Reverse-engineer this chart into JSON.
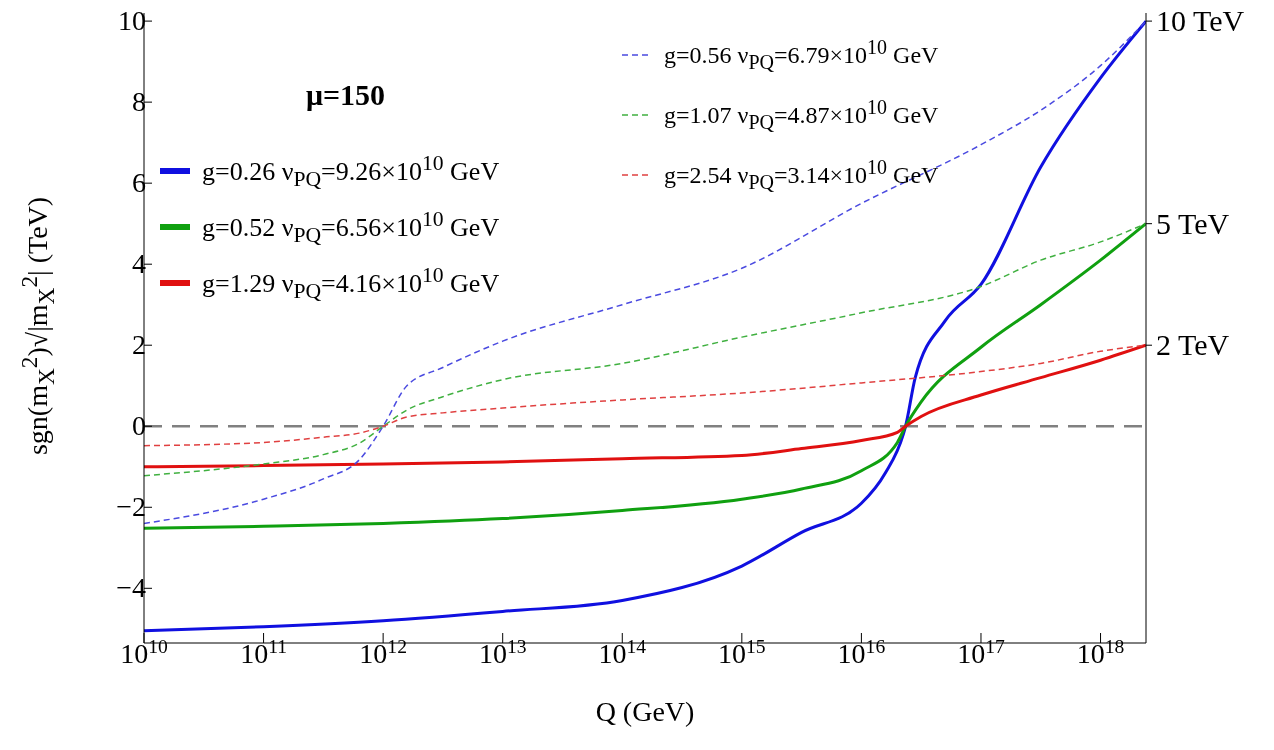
{
  "chart_data": {
    "type": "line",
    "xlabel": "Q (GeV)",
    "ylabel": "sgn(m$_{X}$$^{2}$)√|m$_{X}$$^{2}$| (TeV)",
    "log": "x",
    "xlim": [
      10000000000.0,
      2.4e+18
    ],
    "ylim": [
      -5.35,
      10.2
    ],
    "xticks": [
      {
        "value": 10000000000.0,
        "label": "10$^{10}$"
      },
      {
        "value": 100000000000.0,
        "label": "10$^{11}$"
      },
      {
        "value": 1000000000000.0,
        "label": "10$^{12}$"
      },
      {
        "value": 10000000000000.0,
        "label": "10$^{13}$"
      },
      {
        "value": 100000000000000.0,
        "label": "10$^{14}$"
      },
      {
        "value": 1000000000000000.0,
        "label": "10$^{15}$"
      },
      {
        "value": 1e+16,
        "label": "10$^{16}$"
      },
      {
        "value": 1e+17,
        "label": "10$^{17}$"
      },
      {
        "value": 1e+18,
        "label": "10$^{18}$"
      }
    ],
    "yticks": [
      {
        "value": -4,
        "label": "−4"
      },
      {
        "value": -2,
        "label": "−2"
      },
      0,
      2,
      4,
      6,
      8,
      10
    ],
    "grid": false,
    "legend": "top left",
    "marker": "none",
    "ref_lines": [
      {
        "axis": "y",
        "value": 0,
        "color": "#808080",
        "line_style": "dashed"
      }
    ],
    "annotations": [
      "μ=150"
    ],
    "y2lim": [
      -5.35,
      10.2
    ],
    "y2ticks": [
      {
        "value": 10,
        "label": "10 TeV"
      },
      {
        "value": 5,
        "label": "5 TeV"
      },
      {
        "value": 2,
        "label": "2 TeV"
      }
    ],
    "series": [
      {
        "name": "g=0.26  ν$_{PQ}$=9.26×10$^{10}$ GeV",
        "color": "#1010e0",
        "line_style": "solid",
        "x": [
          10000000000.0,
          100000000000.0,
          1000000000000.0,
          10000000000000.0,
          100000000000000.0,
          1000000000000000.0,
          3160000000000000.0,
          1e+16,
          1.58e+16,
          2.24e+16,
          2.34e+16,
          2.82e+16,
          5.01e+16,
          1e+17,
          3.16e+17,
          1e+18,
          2.4e+18
        ],
        "values": [
          -5.05,
          -4.95,
          -4.8,
          -4.57,
          -4.3,
          -3.45,
          -2.62,
          -1.9,
          -1.16,
          -0.2,
          0,
          1.2,
          2.6,
          3.5,
          6.4,
          8.6,
          10
        ]
      },
      {
        "name": "g=0.52  ν$_{PQ}$=6.56×10$^{10}$ GeV",
        "color": "#10a010",
        "line_style": "solid",
        "x": [
          10000000000.0,
          100000000000.0,
          1000000000000.0,
          10000000000000.0,
          100000000000000.0,
          1000000000000000.0,
          3160000000000000.0,
          1e+16,
          2e+16,
          2.34e+16,
          3.16e+16,
          1e+17,
          3.16e+17,
          1e+18,
          2.4e+18
        ],
        "values": [
          -2.52,
          -2.47,
          -2.4,
          -2.28,
          -2.08,
          -1.8,
          -1.55,
          -1.1,
          -0.4,
          0,
          0.6,
          1.95,
          3.0,
          4.1,
          5
        ]
      },
      {
        "name": "g=1.29  ν$_{PQ}$=4.16×10$^{10}$ GeV",
        "color": "#e01010",
        "line_style": "solid",
        "x": [
          10000000000.0,
          100000000000.0,
          1000000000000.0,
          10000000000000.0,
          100000000000000.0,
          1000000000000000.0,
          3160000000000000.0,
          1e+16,
          2e+16,
          2.34e+16,
          3.16e+16,
          1e+17,
          3.16e+17,
          1e+18,
          2.4e+18
        ],
        "values": [
          -1.0,
          -0.97,
          -0.93,
          -0.88,
          -0.8,
          -0.72,
          -0.55,
          -0.35,
          -0.15,
          0,
          0.24,
          0.77,
          1.2,
          1.63,
          2
        ]
      },
      {
        "name": "g=0.56  ν$_{PQ}$=6.79×10$^{10}$ GeV",
        "color": "#4a4ae0",
        "line_style": "dashed",
        "x": [
          10000000000.0,
          100000000000.0,
          316000000000.0,
          631000000000.0,
          1000000000000.0,
          1580000000000.0,
          3160000000000.0,
          10000000000000.0,
          100000000000000.0,
          1000000000000000.0,
          1e+16,
          1e+17,
          3.16e+17,
          1e+18,
          2.4e+18
        ],
        "values": [
          -2.4,
          -1.8,
          -1.3,
          -0.83,
          0,
          1.0,
          1.45,
          2.1,
          3.0,
          3.9,
          5.5,
          6.95,
          7.8,
          8.9,
          10
        ]
      },
      {
        "name": "g=1.07  ν$_{PQ}$=4.87×10$^{10}$ GeV",
        "color": "#40b040",
        "line_style": "dashed",
        "x": [
          10000000000.0,
          100000000000.0,
          316000000000.0,
          631000000000.0,
          1000000000000.0,
          1580000000000.0,
          3160000000000.0,
          10000000000000.0,
          100000000000000.0,
          1000000000000000.0,
          1e+16,
          1e+17,
          3.16e+17,
          1e+18,
          2.4e+18
        ],
        "values": [
          -1.22,
          -0.93,
          -0.7,
          -0.42,
          0,
          0.4,
          0.73,
          1.15,
          1.55,
          2.2,
          2.8,
          3.45,
          4.1,
          4.55,
          5
        ]
      },
      {
        "name": "g=2.54  ν$_{PQ}$=3.14×10$^{10}$ GeV",
        "color": "#e04040",
        "line_style": "dashed",
        "x": [
          10000000000.0,
          100000000000.0,
          316000000000.0,
          631000000000.0,
          1000000000000.0,
          1580000000000.0,
          3160000000000.0,
          10000000000000.0,
          100000000000000.0,
          1000000000000000.0,
          1e+16,
          1e+17,
          3.16e+17,
          1e+18,
          2.4e+18
        ],
        "values": [
          -0.48,
          -0.4,
          -0.27,
          -0.17,
          0,
          0.23,
          0.33,
          0.45,
          0.65,
          0.82,
          1.07,
          1.35,
          1.55,
          1.85,
          2
        ]
      }
    ]
  }
}
